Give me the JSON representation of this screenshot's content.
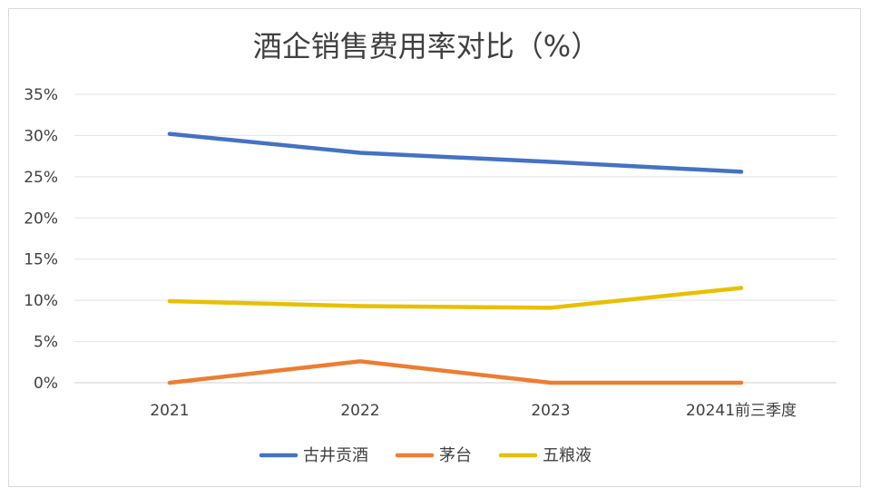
{
  "chart_data": {
    "type": "line",
    "title": "酒企销售费用率对比（%）",
    "categories": [
      "2021",
      "2022",
      "2023",
      "20241前三季度"
    ],
    "y_ticks": [
      "0%",
      "5%",
      "10%",
      "15%",
      "20%",
      "25%",
      "30%",
      "35%"
    ],
    "ylim": [
      0,
      35
    ],
    "grid": true,
    "legend_position": "bottom",
    "series": [
      {
        "name": "古井贡酒",
        "color": "#4472c4",
        "values": [
          30.2,
          27.9,
          26.8,
          25.6
        ]
      },
      {
        "name": "茅台",
        "color": "#ed7d31",
        "values": [
          0.0,
          2.6,
          0.0,
          0.0
        ]
      },
      {
        "name": "五粮液",
        "color": "#e8c000",
        "values": [
          9.9,
          9.3,
          9.1,
          11.5
        ]
      }
    ]
  }
}
